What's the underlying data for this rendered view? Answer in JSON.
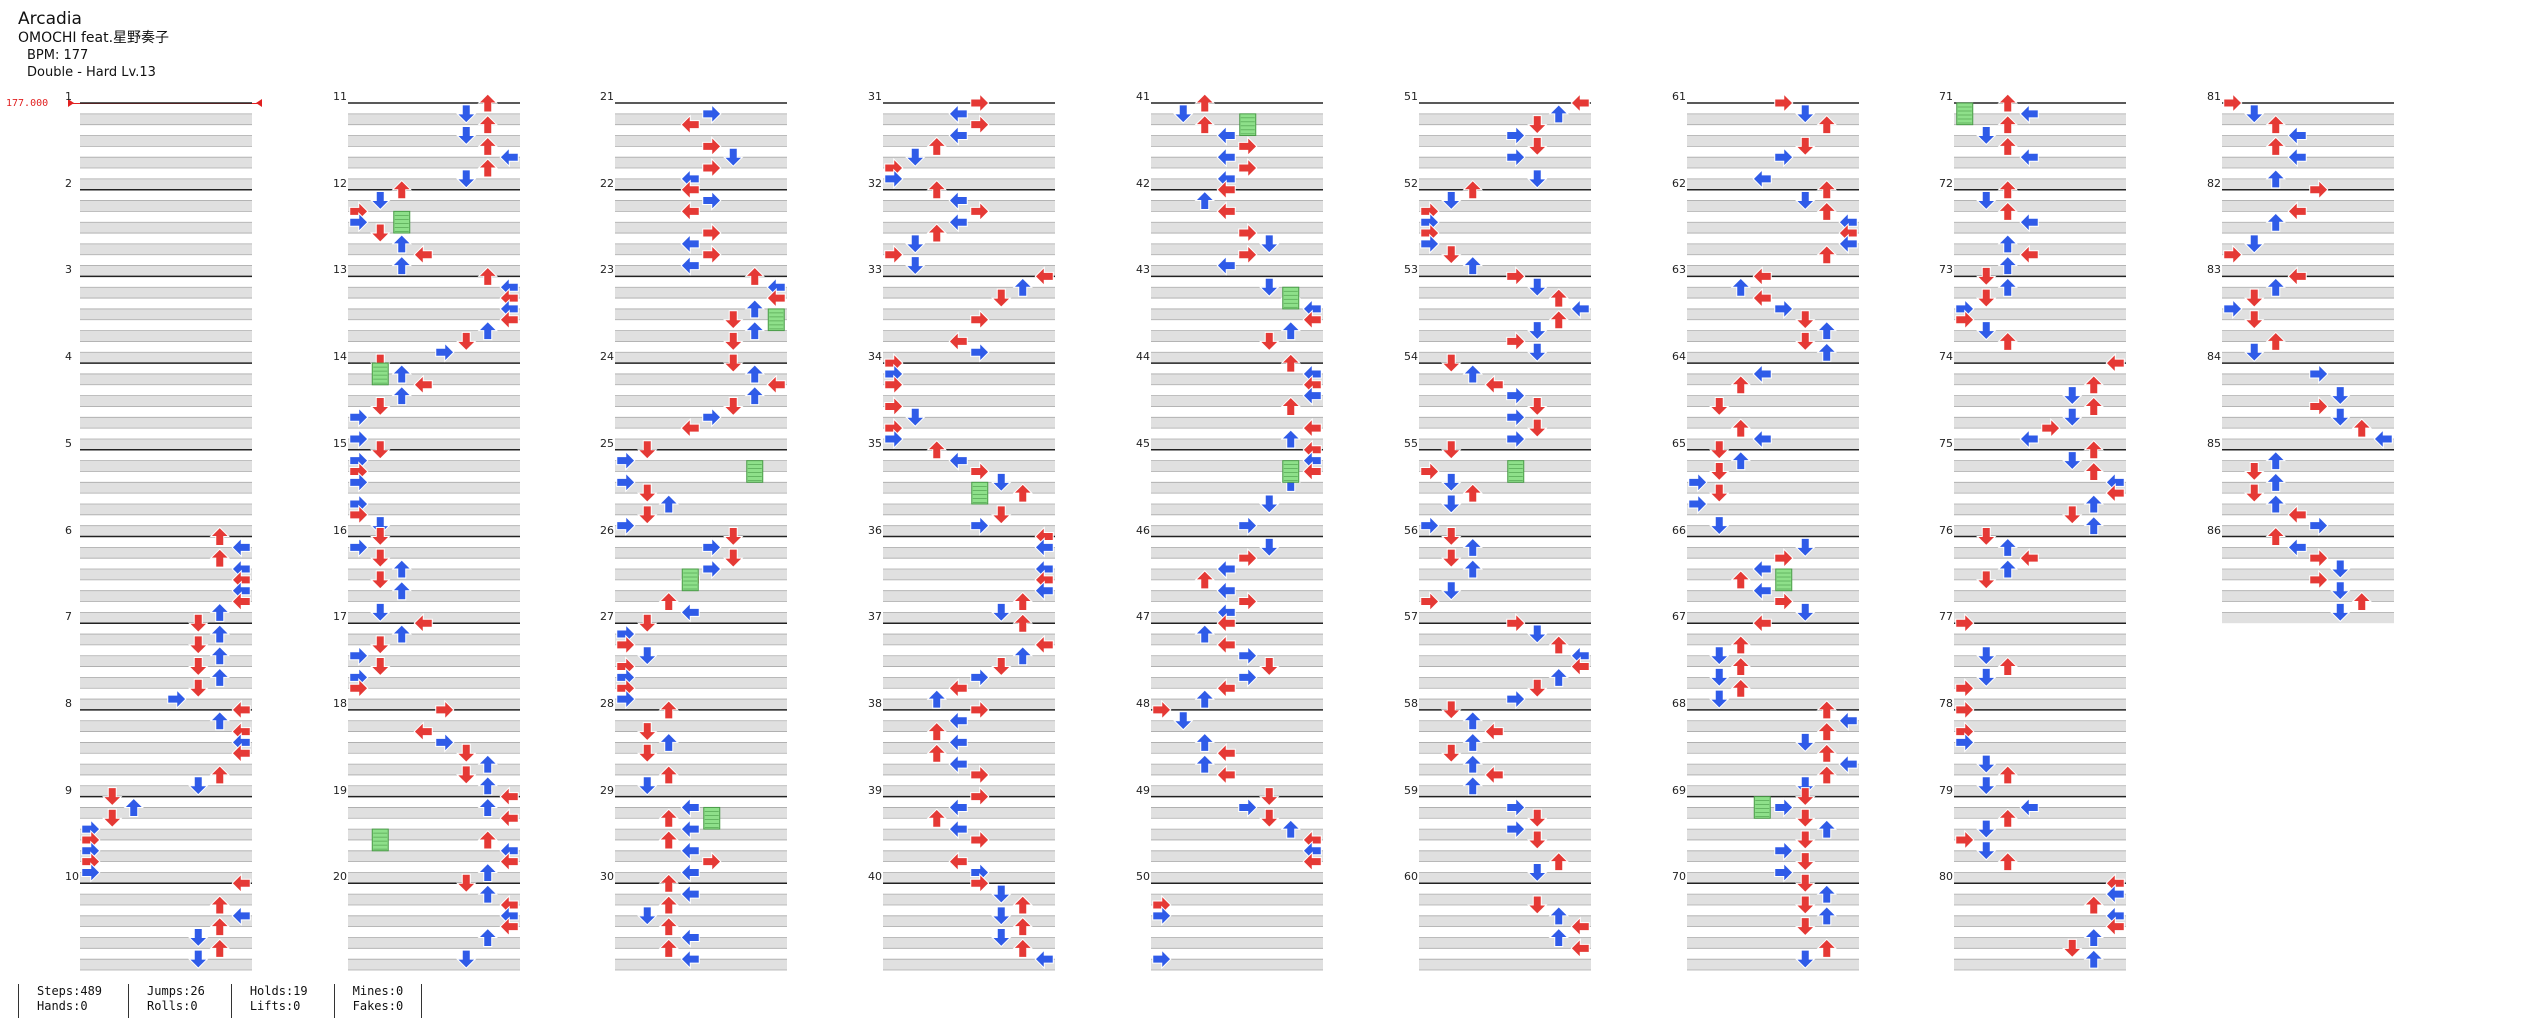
{
  "song": {
    "title": "Arcadia",
    "artist": "OMOCHI feat.星野奏子",
    "bpm_text": "BPM: 177",
    "difficulty_text": "Double - Hard Lv.13"
  },
  "bpm_change_label": "177.000",
  "measures": [
    "1",
    "2",
    "3",
    "4",
    "5",
    "6",
    "7",
    "8",
    "9",
    "10",
    "11",
    "12",
    "13",
    "14",
    "15",
    "16",
    "17",
    "18",
    "19",
    "20",
    "21",
    "22",
    "23",
    "24",
    "25",
    "26",
    "27",
    "28",
    "29",
    "30",
    "31",
    "32",
    "33",
    "34",
    "35",
    "36",
    "37",
    "38",
    "39",
    "40",
    "41",
    "42",
    "43",
    "44",
    "45",
    "46",
    "47",
    "48",
    "49",
    "50",
    "51",
    "52",
    "53",
    "54",
    "55",
    "56",
    "57",
    "58",
    "59",
    "60",
    "61",
    "62",
    "63",
    "64",
    "65",
    "66",
    "67",
    "68",
    "69",
    "70",
    "71",
    "72",
    "73",
    "74",
    "75",
    "76",
    "77",
    "78",
    "79",
    "80",
    "81",
    "82",
    "83",
    "84",
    "85",
    "86"
  ],
  "stats": {
    "col1": [
      "Steps:489",
      "Hands:0"
    ],
    "col2": [
      "Jumps:26",
      "Rolls:0"
    ],
    "col3": [
      "Holds:19",
      "Lifts:0"
    ],
    "col4": [
      "Mines:0",
      "Fakes:0"
    ]
  },
  "colors": {
    "quarter": "#e53935",
    "eighth": "#2f5be8",
    "sixteenth": "#a04de8",
    "twelfth": "#f5df3a",
    "hold": "#8ee08a"
  }
}
